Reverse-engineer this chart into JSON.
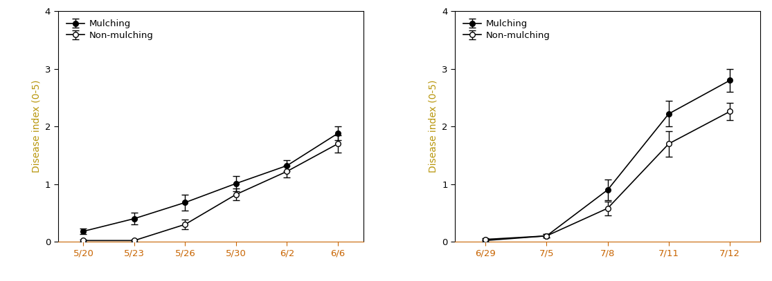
{
  "chart1": {
    "x_labels": [
      "5/20",
      "5/23",
      "5/26",
      "5/30",
      "6/2",
      "6/6"
    ],
    "mulching_y": [
      0.18,
      0.4,
      0.68,
      1.01,
      1.32,
      1.88
    ],
    "mulching_err": [
      0.05,
      0.1,
      0.14,
      0.13,
      0.1,
      0.12
    ],
    "nonmulching_y": [
      0.02,
      0.02,
      0.3,
      0.82,
      1.22,
      1.7
    ],
    "nonmulching_err": [
      0.02,
      0.02,
      0.08,
      0.1,
      0.1,
      0.15
    ]
  },
  "chart2": {
    "x_labels": [
      "6/29",
      "7/5",
      "7/8",
      "7/11",
      "7/12"
    ],
    "mulching_y": [
      0.02,
      0.1,
      0.9,
      2.22,
      2.8
    ],
    "mulching_err": [
      0.02,
      0.03,
      0.18,
      0.22,
      0.2
    ],
    "nonmulching_y": [
      0.04,
      0.1,
      0.58,
      1.7,
      2.26
    ],
    "nonmulching_err": [
      0.02,
      0.03,
      0.12,
      0.22,
      0.15
    ]
  },
  "ylabel": "Disease index (0-5)",
  "ylim": [
    0,
    4
  ],
  "yticks": [
    0,
    1,
    2,
    3,
    4
  ],
  "legend_mulching": "Mulching",
  "legend_nonmulching": "Non-mulching",
  "ylabel_color": "#b8960c",
  "line_color": "#000000",
  "xtick_label_color": "#c86400",
  "ytick_label_color": "#000000",
  "spine_color": "#000000",
  "bottom_spine_color": "#c86400"
}
